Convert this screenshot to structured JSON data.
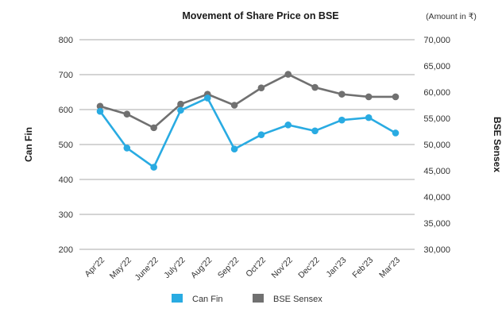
{
  "chart_data": {
    "type": "line",
    "title": "Movement of Share Price on BSE",
    "units_note": "(Amount in ₹)",
    "categories": [
      "Apr'22",
      "May'22",
      "June'22",
      "July'22",
      "Aug'22",
      "Sep'22",
      "Oct'22",
      "Nov'22",
      "Dec'22",
      "Jan'23",
      "Feb'23",
      "Mar'23"
    ],
    "y_left": {
      "label": "Can Fin",
      "lim": [
        200,
        800
      ],
      "ticks": [
        "200",
        "300",
        "400",
        "500",
        "600",
        "700",
        "800"
      ]
    },
    "y_right": {
      "label": "BSE Sensex",
      "lim": [
        30000,
        70000
      ],
      "ticks": [
        "30,000",
        "35,000",
        "40,000",
        "45,000",
        "50,000",
        "55,000",
        "60,000",
        "65,000",
        "70,000"
      ]
    },
    "series": [
      {
        "name": "Can Fin",
        "axis": "left",
        "color": "#29abe2",
        "values": [
          595,
          490,
          435,
          598,
          633,
          487,
          528,
          556,
          539,
          570,
          577,
          533
        ]
      },
      {
        "name": "BSE Sensex",
        "axis": "right",
        "color": "#707070",
        "values": [
          57300,
          55800,
          53200,
          57700,
          59600,
          57500,
          60800,
          63400,
          60900,
          59600,
          59100,
          59100
        ]
      }
    ],
    "grid": true,
    "legend": "bottom"
  }
}
